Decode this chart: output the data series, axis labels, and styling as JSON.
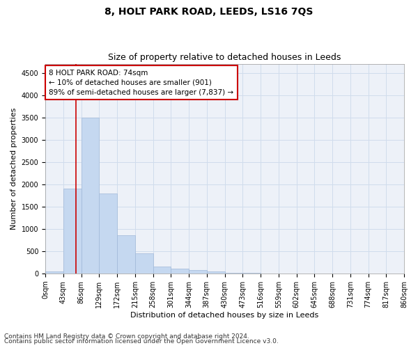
{
  "title": "8, HOLT PARK ROAD, LEEDS, LS16 7QS",
  "subtitle": "Size of property relative to detached houses in Leeds",
  "xlabel": "Distribution of detached houses by size in Leeds",
  "ylabel": "Number of detached properties",
  "footnote1": "Contains HM Land Registry data © Crown copyright and database right 2024.",
  "footnote2": "Contains public sector information licensed under the Open Government Licence v3.0.",
  "annotation_line1": "8 HOLT PARK ROAD: 74sqm",
  "annotation_line2": "← 10% of detached houses are smaller (901)",
  "annotation_line3": "89% of semi-detached houses are larger (7,837) →",
  "bar_values": [
    50,
    1900,
    3500,
    1800,
    850,
    450,
    150,
    100,
    70,
    50,
    20,
    10,
    5,
    3,
    2,
    1,
    1,
    0,
    0,
    0
  ],
  "bin_labels": [
    "0sqm",
    "43sqm",
    "86sqm",
    "129sqm",
    "172sqm",
    "215sqm",
    "258sqm",
    "301sqm",
    "344sqm",
    "387sqm",
    "430sqm",
    "473sqm",
    "516sqm",
    "559sqm",
    "602sqm",
    "645sqm",
    "688sqm",
    "731sqm",
    "774sqm",
    "817sqm",
    "860sqm"
  ],
  "bar_color": "#c5d8f0",
  "bar_edge_color": "#a0b8d8",
  "grid_color": "#d0dcec",
  "vline_color": "#cc0000",
  "annotation_box_color": "#cc0000",
  "ylim": [
    0,
    4700
  ],
  "yticks": [
    0,
    500,
    1000,
    1500,
    2000,
    2500,
    3000,
    3500,
    4000,
    4500
  ],
  "title_fontsize": 10,
  "subtitle_fontsize": 9,
  "axis_label_fontsize": 8,
  "tick_fontsize": 7,
  "annotation_fontsize": 7.5,
  "footnote_fontsize": 6.5,
  "bg_color": "#edf1f8"
}
